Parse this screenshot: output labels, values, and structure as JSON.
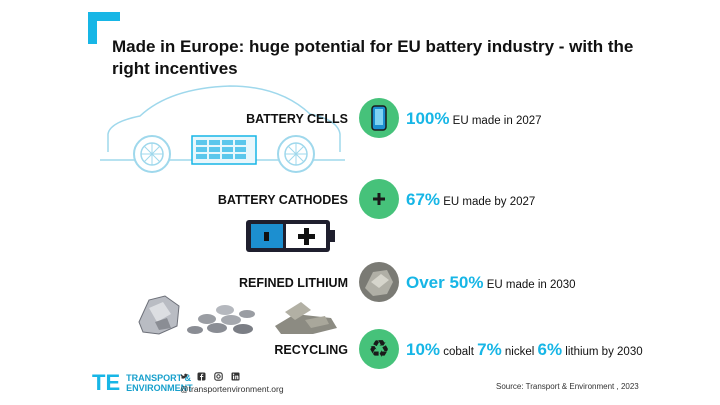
{
  "title": "Made in Europe: huge potential for EU battery industry - with the right incentives",
  "rows": [
    {
      "label": "BATTERY CELLS",
      "icon": "phone-battery-icon",
      "stat_big": "100%",
      "stat_text": " EU made in 2027"
    },
    {
      "label": "BATTERY CATHODES",
      "icon": "plus-icon",
      "stat_big": "67%",
      "stat_text": " EU made by 2027"
    },
    {
      "label": "REFINED LITHIUM",
      "icon": "lithium-rock-icon",
      "stat_big": "Over 50%",
      "stat_text": " EU made in 2030"
    },
    {
      "label": "RECYCLING",
      "icon": "recycle-icon",
      "stat_parts": [
        {
          "big": "10%",
          "text": " cobalt "
        },
        {
          "big": "7%",
          "text": " nickel "
        },
        {
          "big": "6%",
          "text": " lithium by 2030"
        }
      ]
    }
  ],
  "footer": {
    "logo_line1": "TRANSPORT &",
    "logo_line2": "ENVIRONMENT",
    "website": "@transportenvironment.org",
    "source": "Source: Transport & Environment , 2023"
  },
  "colors": {
    "accent": "#17b6e6",
    "green": "#46c27a"
  }
}
